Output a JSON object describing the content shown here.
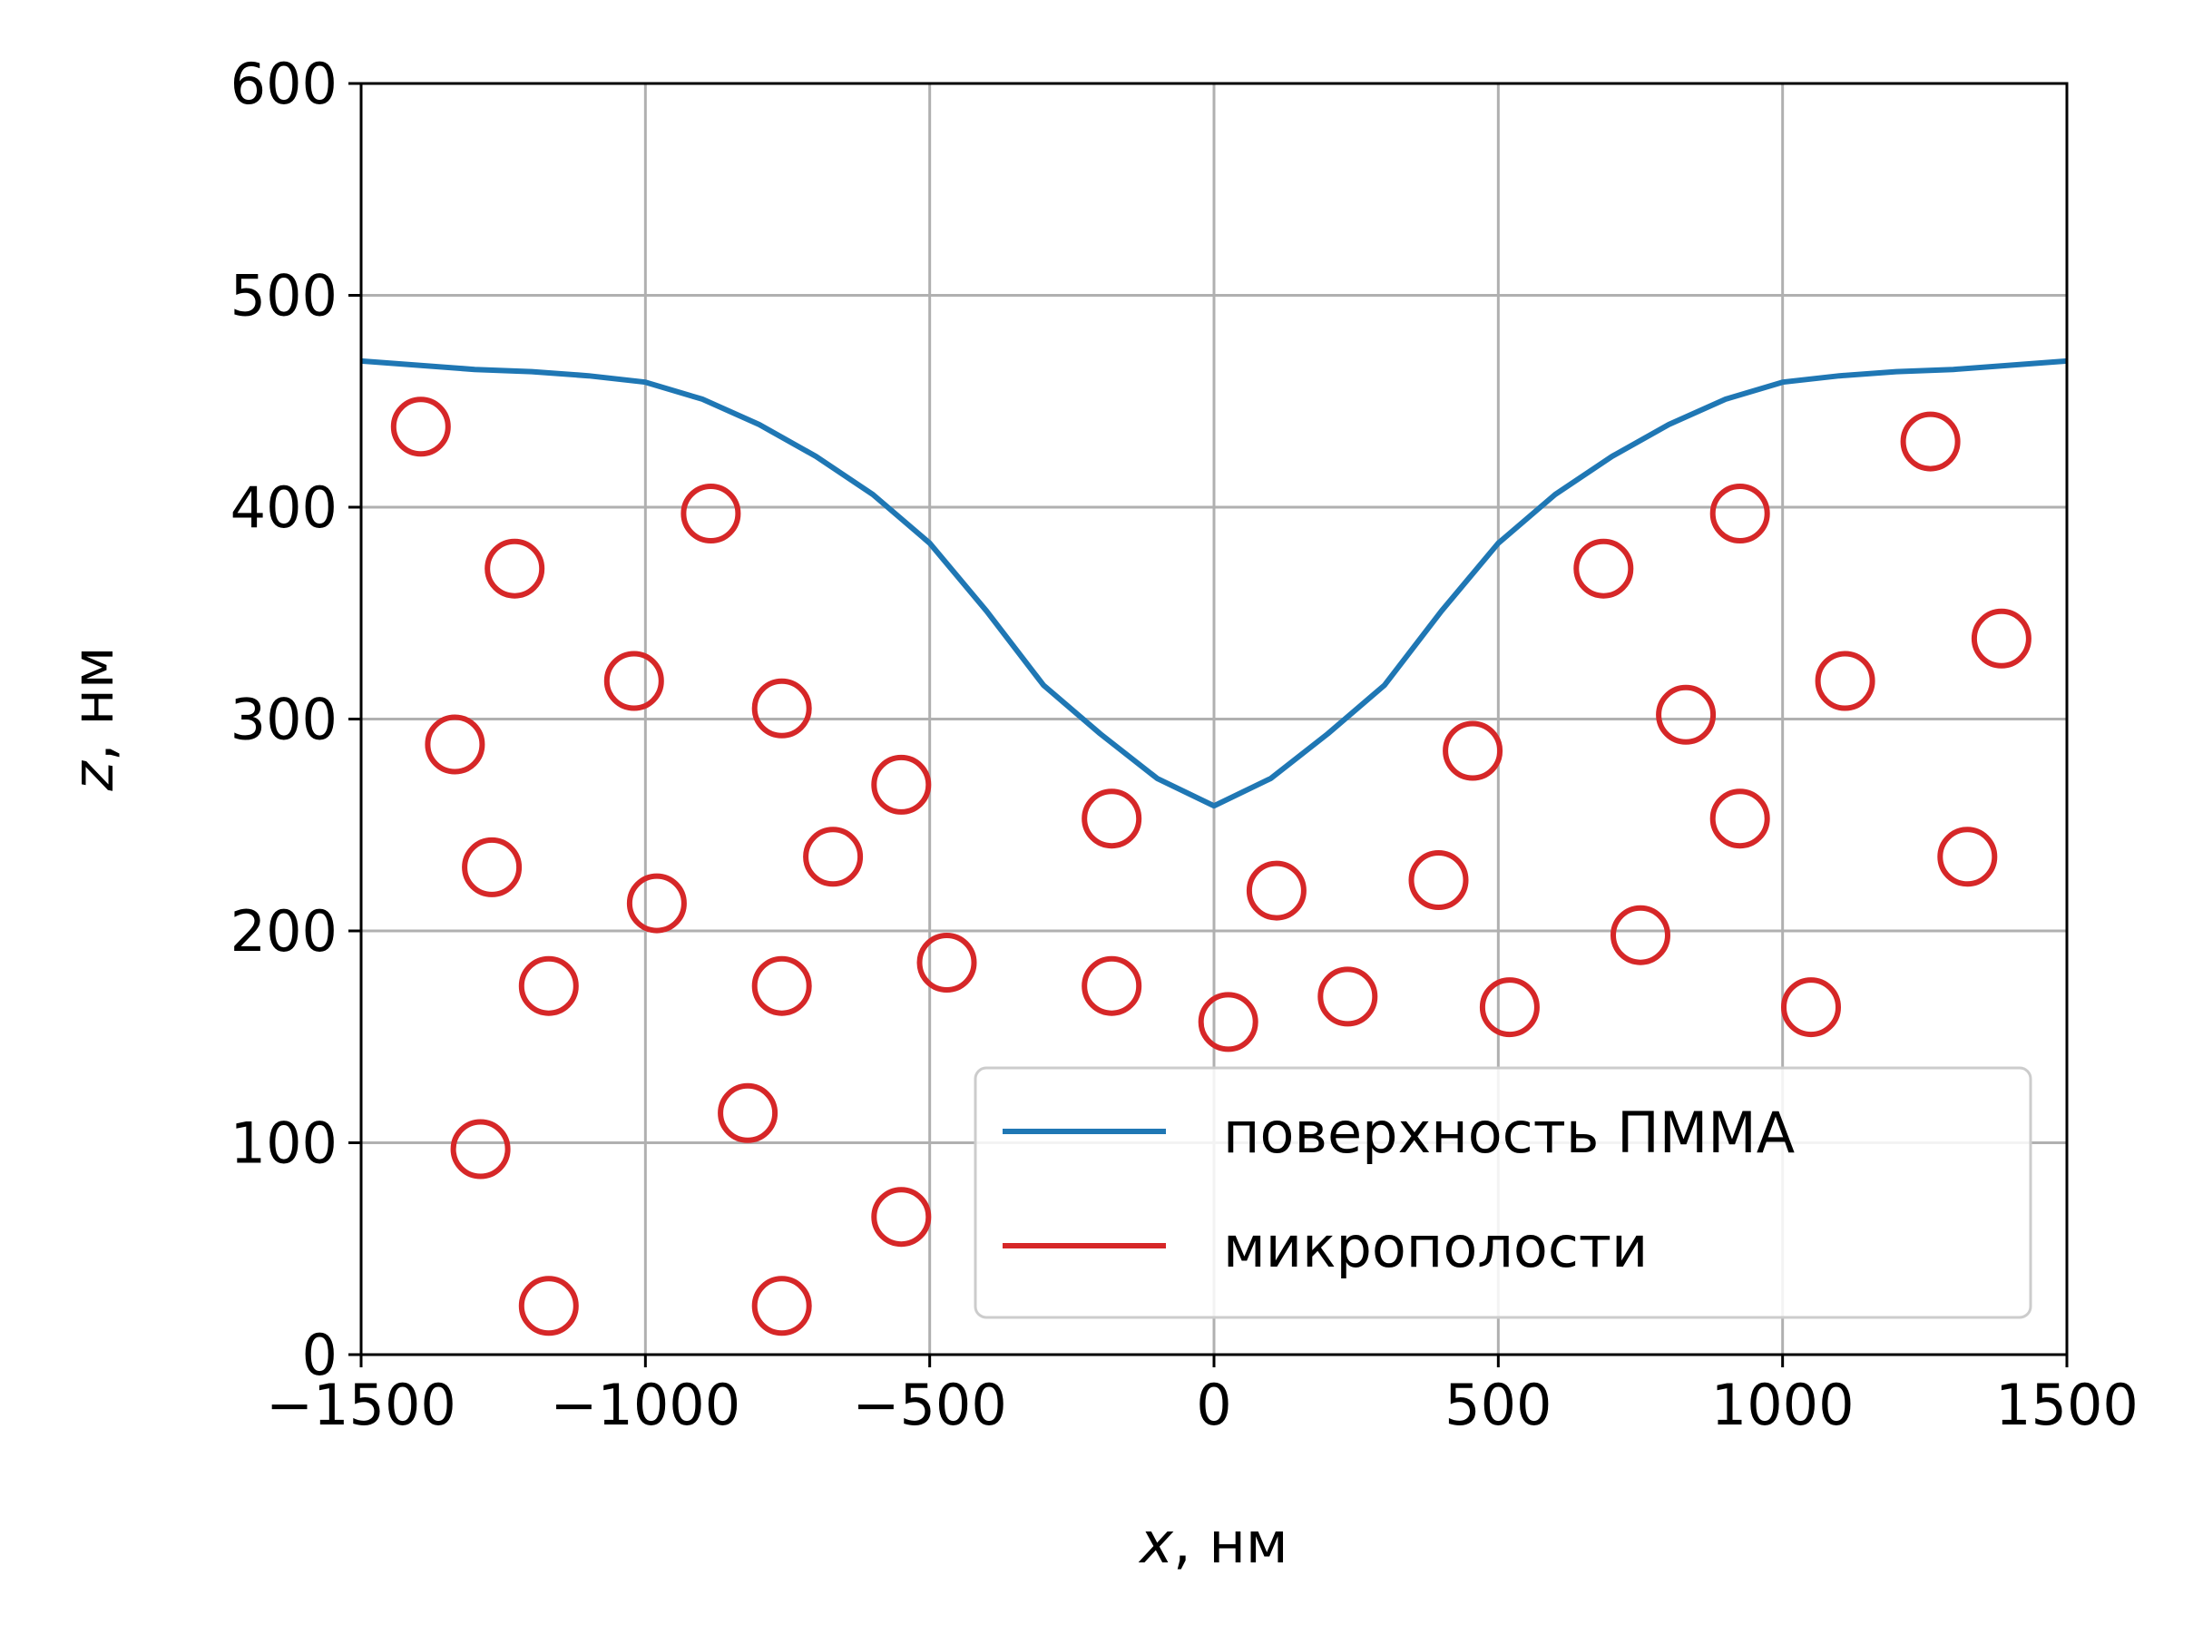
{
  "chart_data": {
    "type": "scatter",
    "title": "",
    "xlabel_var": "x",
    "xlabel_unit": ", нм",
    "ylabel_var": "z",
    "ylabel_unit": ", нм",
    "xlim": [
      -1500,
      1500
    ],
    "ylim": [
      0,
      600
    ],
    "xticks": [
      -1500,
      -1000,
      -500,
      0,
      500,
      1000,
      1500
    ],
    "xtick_labels": [
      "−1500",
      "−1000",
      "−500",
      "0",
      "500",
      "1000",
      "1500"
    ],
    "yticks": [
      0,
      100,
      200,
      300,
      400,
      500,
      600
    ],
    "ytick_labels": [
      "0",
      "100",
      "200",
      "300",
      "400",
      "500",
      "600"
    ],
    "grid": true,
    "legend_position": "lower-right",
    "series": [
      {
        "name": "поверхность ПММА",
        "kind": "line",
        "color": "#1f77b4",
        "x": [
          -1500,
          -1300,
          -1200,
          -1100,
          -1000,
          -900,
          -800,
          -700,
          -600,
          -500,
          -400,
          -300,
          -200,
          -100,
          0,
          100,
          200,
          300,
          400,
          500,
          600,
          700,
          800,
          900,
          1000,
          1100,
          1200,
          1300,
          1500
        ],
        "y": [
          469,
          465,
          464,
          462,
          459,
          451,
          439,
          424,
          406,
          383,
          351,
          316,
          293,
          272,
          259,
          272,
          293,
          316,
          351,
          383,
          406,
          424,
          439,
          451,
          459,
          462,
          464,
          465,
          469
        ]
      },
      {
        "name": "микрополости",
        "kind": "scatter",
        "marker": "open-circle",
        "color": "#d62728",
        "x": [
          -1395,
          -1230,
          -1335,
          -1270,
          -1170,
          -1290,
          -1170,
          -885,
          -1020,
          -980,
          -760,
          -670,
          -760,
          -820,
          -760,
          -550,
          -470,
          -550,
          -180,
          -180,
          25,
          110,
          235,
          395,
          455,
          520,
          685,
          750,
          830,
          925,
          925,
          1050,
          1110,
          1260,
          1385,
          1325
        ],
        "y": [
          438,
          371,
          288,
          230,
          174,
          97,
          23,
          397,
          318,
          213,
          305,
          235,
          174,
          114,
          23,
          269,
          185,
          65,
          253,
          174,
          157,
          219,
          169,
          224,
          285,
          164,
          371,
          198,
          302,
          397,
          253,
          164,
          318,
          431,
          338,
          235
        ]
      }
    ]
  }
}
